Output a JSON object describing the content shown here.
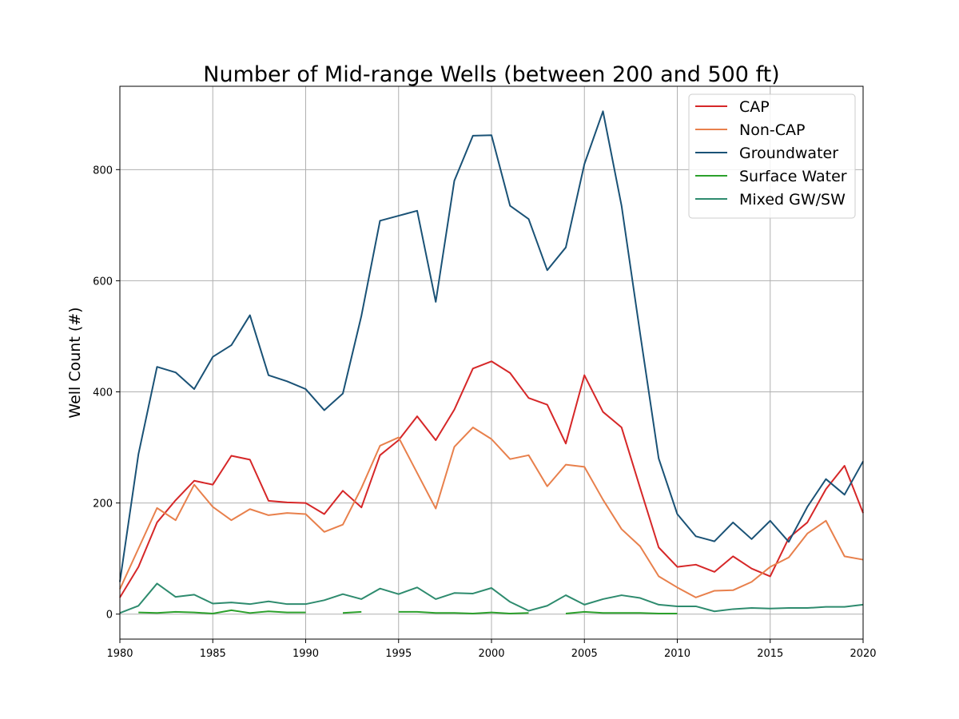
{
  "chart_data": {
    "type": "line",
    "title": "Number of Mid-range Wells (between 200 and 500 ft)",
    "xlabel": "",
    "ylabel": "Well Count (#)",
    "xlim": [
      1980,
      2020
    ],
    "ylim": [
      -45,
      950
    ],
    "xticks": [
      1980,
      1985,
      1990,
      1995,
      2000,
      2005,
      2010,
      2015,
      2020
    ],
    "yticks": [
      0,
      200,
      400,
      600,
      800
    ],
    "grid": true,
    "legend": "top-right",
    "x": [
      1980,
      1981,
      1982,
      1983,
      1984,
      1985,
      1986,
      1987,
      1988,
      1989,
      1990,
      1991,
      1992,
      1993,
      1994,
      1995,
      1996,
      1997,
      1998,
      1999,
      2000,
      2001,
      2002,
      2003,
      2004,
      2005,
      2006,
      2007,
      2008,
      2009,
      2010,
      2011,
      2012,
      2013,
      2014,
      2015,
      2016,
      2017,
      2018,
      2019,
      2020
    ],
    "series": [
      {
        "name": "CAP",
        "color": "#d62728",
        "values": [
          30,
          85,
          165,
          205,
          240,
          233,
          285,
          278,
          204,
          201,
          200,
          180,
          222,
          192,
          286,
          313,
          356,
          313,
          368,
          442,
          455,
          434,
          389,
          377,
          307,
          430,
          364,
          336,
          227,
          120,
          85,
          89,
          76,
          104,
          82,
          68,
          137,
          165,
          225,
          267,
          182
        ]
      },
      {
        "name": "Non-CAP",
        "color": "#e8804c",
        "values": [
          45,
          118,
          191,
          169,
          233,
          193,
          169,
          189,
          178,
          182,
          180,
          148,
          161,
          227,
          303,
          318,
          254,
          190,
          301,
          336,
          315,
          279,
          286,
          230,
          269,
          265,
          206,
          153,
          122,
          68,
          48,
          30,
          42,
          43,
          58,
          85,
          102,
          145,
          168,
          104,
          98
        ]
      },
      {
        "name": "Groundwater",
        "color": "#1a5276",
        "values": [
          58,
          288,
          445,
          435,
          405,
          463,
          484,
          538,
          430,
          419,
          405,
          367,
          397,
          537,
          708,
          717,
          726,
          562,
          780,
          861,
          862,
          735,
          711,
          619,
          660,
          810,
          905,
          735,
          505,
          280,
          180,
          140,
          131,
          165,
          135,
          168,
          130,
          193,
          243,
          215,
          275
        ]
      },
      {
        "name": "Surface Water",
        "color": "#2ca02c",
        "values": [
          null,
          3,
          2,
          4,
          3,
          1,
          7,
          2,
          5,
          3,
          3,
          null,
          2,
          4,
          null,
          4,
          4,
          2,
          2,
          1,
          3,
          1,
          2,
          null,
          1,
          4,
          2,
          2,
          2,
          1,
          1,
          null,
          null,
          null,
          null,
          null,
          null,
          null,
          null,
          null,
          null
        ]
      },
      {
        "name": "Mixed GW/SW",
        "color": "#2e8b6e",
        "values": [
          2,
          15,
          55,
          31,
          35,
          19,
          21,
          18,
          23,
          18,
          18,
          25,
          36,
          27,
          46,
          36,
          48,
          27,
          38,
          37,
          47,
          22,
          6,
          15,
          34,
          17,
          27,
          34,
          29,
          17,
          14,
          14,
          5,
          9,
          11,
          10,
          11,
          11,
          13,
          13,
          17
        ]
      }
    ]
  }
}
